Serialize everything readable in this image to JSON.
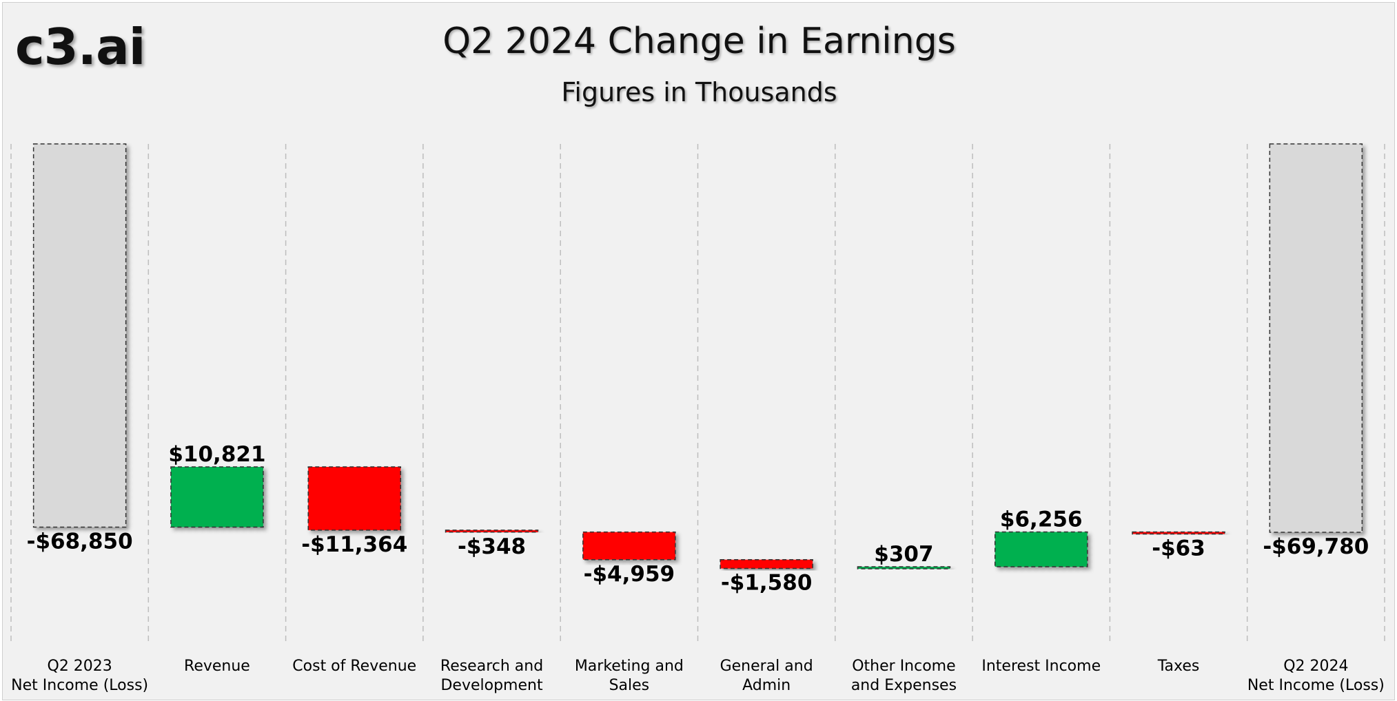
{
  "header": {
    "logo_text": "c3.ai"
  },
  "chart_data": {
    "type": "waterfall",
    "title": "Q2 2024 Change in Earnings",
    "subtitle": "Figures in Thousands",
    "categories": [
      [
        "Q2 2023",
        "Net Income (Loss)"
      ],
      [
        "Revenue"
      ],
      [
        "Cost of Revenue"
      ],
      [
        "Research and",
        "Development"
      ],
      [
        "Marketing and",
        "Sales"
      ],
      [
        "General and",
        "Admin"
      ],
      [
        "Other Income",
        "and Expenses"
      ],
      [
        "Interest Income"
      ],
      [
        "Taxes"
      ],
      [
        "Q2 2024",
        "Net Income (Loss)"
      ]
    ],
    "values": [
      -68850,
      10821,
      -11364,
      -348,
      -4959,
      -1580,
      307,
      6256,
      -63,
      -69780
    ],
    "labels": [
      "-$68,850",
      "$10,821",
      "-$11,364",
      "-$348",
      "-$4,959",
      "-$1,580",
      "$307",
      "$6,256",
      "-$63",
      "-$69,780"
    ],
    "kinds": [
      "total",
      "delta",
      "delta",
      "delta",
      "delta",
      "delta",
      "delta",
      "delta",
      "delta",
      "total"
    ],
    "colors": {
      "total": "#d9d9d9",
      "increase": "#00b050",
      "decrease": "#ff0000"
    },
    "grid": "vertical dashed separators",
    "legend": "none"
  }
}
